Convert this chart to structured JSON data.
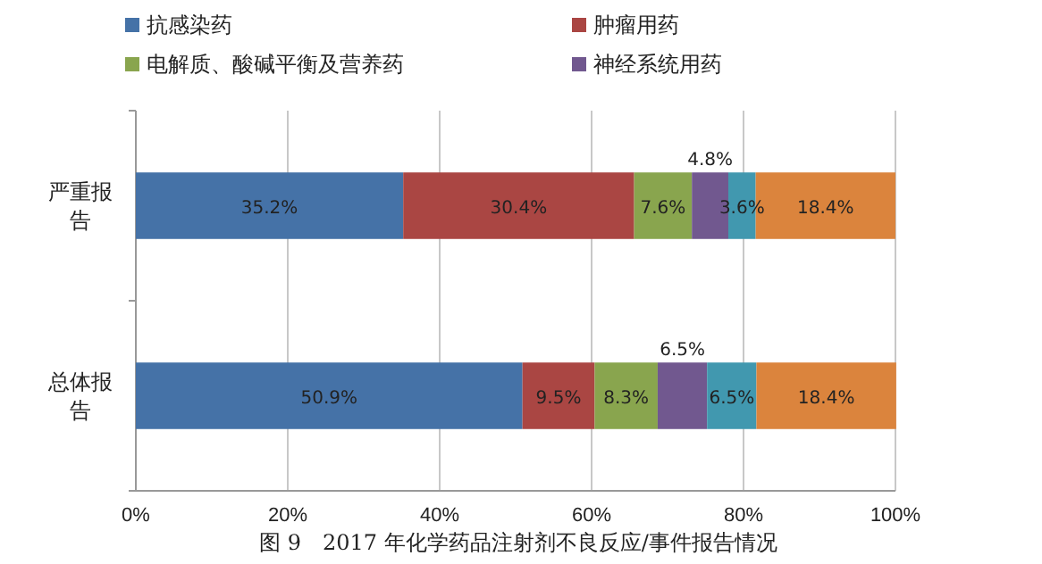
{
  "chart_data": {
    "type": "bar",
    "orientation": "horizontal",
    "stacked": true,
    "title": "图 9　2017 年化学药品注射剂不良反应/事件报告情况",
    "categories": [
      "严重报告",
      "总体报告"
    ],
    "series": [
      {
        "name": "抗感染药",
        "color": "#4572a7",
        "values": [
          35.2,
          50.9
        ],
        "value_labels": [
          "35.2%",
          "50.9%"
        ]
      },
      {
        "name": "肿瘤用药",
        "color": "#aa4643",
        "values": [
          30.4,
          9.5
        ],
        "value_labels": [
          "30.4%",
          "9.5%"
        ]
      },
      {
        "name": "电解质、酸碱平衡及营养药",
        "color": "#89a54e",
        "values": [
          7.6,
          8.3
        ],
        "value_labels": [
          "7.6%",
          "8.3%"
        ]
      },
      {
        "name": "神经系统用药",
        "color": "#71588f",
        "values": [
          4.8,
          6.5
        ],
        "value_labels": [
          "4.8%",
          "6.5%"
        ]
      },
      {
        "color": "#4198af",
        "values": [
          3.6,
          6.5
        ],
        "value_labels": [
          "3.6%",
          "6.5%"
        ]
      },
      {
        "color": "#db843d",
        "values": [
          18.4,
          18.4
        ],
        "value_labels": [
          "18.4%",
          "18.4%"
        ]
      }
    ],
    "xlim": [
      0,
      100
    ],
    "xticks": [
      {
        "value": 0,
        "label": "0%"
      },
      {
        "value": 20,
        "label": "20%"
      },
      {
        "value": 40,
        "label": "40%"
      },
      {
        "value": 60,
        "label": "60%"
      },
      {
        "value": 80,
        "label": "80%"
      },
      {
        "value": 100,
        "label": "100%"
      }
    ],
    "grid": "x",
    "legend": "top"
  }
}
